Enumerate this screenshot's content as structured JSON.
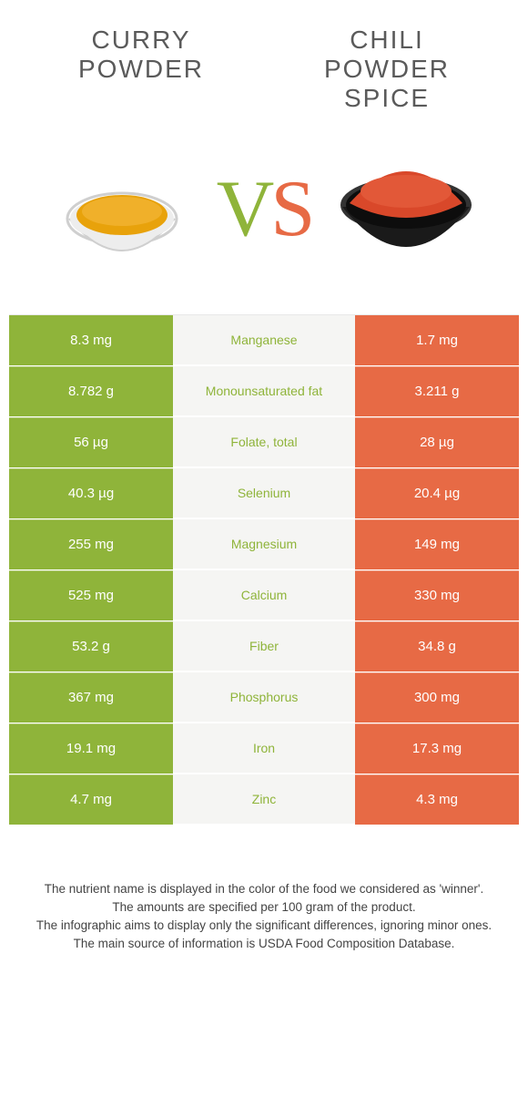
{
  "colors": {
    "left": "#8fb43a",
    "right": "#e76a45",
    "mid_bg": "#f5f5f3",
    "text": "#333333",
    "title": "#5a5a5a"
  },
  "header": {
    "left_title_line1": "CURRY",
    "left_title_line2": "POWDER",
    "right_title_line1": "CHILI",
    "right_title_line2": "POWDER",
    "right_title_line3": "SPICE",
    "vs_v": "V",
    "vs_s": "S"
  },
  "bowls": {
    "left": {
      "powder_color": "#e8a20b",
      "bowl_rim": "#d0d0d0",
      "bowl_body": "#ededed"
    },
    "right": {
      "powder_color": "#d9482a",
      "bowl_rim": "#333333",
      "bowl_body": "#1a1a1a"
    }
  },
  "table": {
    "rows": [
      {
        "left": "8.3 mg",
        "label": "Manganese",
        "right": "1.7 mg",
        "winner": "left"
      },
      {
        "left": "8.782 g",
        "label": "Monounsaturated fat",
        "right": "3.211 g",
        "winner": "left"
      },
      {
        "left": "56 µg",
        "label": "Folate, total",
        "right": "28 µg",
        "winner": "left"
      },
      {
        "left": "40.3 µg",
        "label": "Selenium",
        "right": "20.4 µg",
        "winner": "left"
      },
      {
        "left": "255 mg",
        "label": "Magnesium",
        "right": "149 mg",
        "winner": "left"
      },
      {
        "left": "525 mg",
        "label": "Calcium",
        "right": "330 mg",
        "winner": "left"
      },
      {
        "left": "53.2 g",
        "label": "Fiber",
        "right": "34.8 g",
        "winner": "left"
      },
      {
        "left": "367 mg",
        "label": "Phosphorus",
        "right": "300 mg",
        "winner": "left"
      },
      {
        "left": "19.1 mg",
        "label": "Iron",
        "right": "17.3 mg",
        "winner": "left"
      },
      {
        "left": "4.7 mg",
        "label": "Zinc",
        "right": "4.3 mg",
        "winner": "left"
      }
    ]
  },
  "footer": {
    "line1": "The nutrient name is displayed in the color of the food we considered as 'winner'.",
    "line2": "The amounts are specified per 100 gram of the product.",
    "line3": "The infographic aims to display only the significant differences, ignoring minor ones.",
    "line4": "The main source of information is USDA Food Composition Database."
  }
}
